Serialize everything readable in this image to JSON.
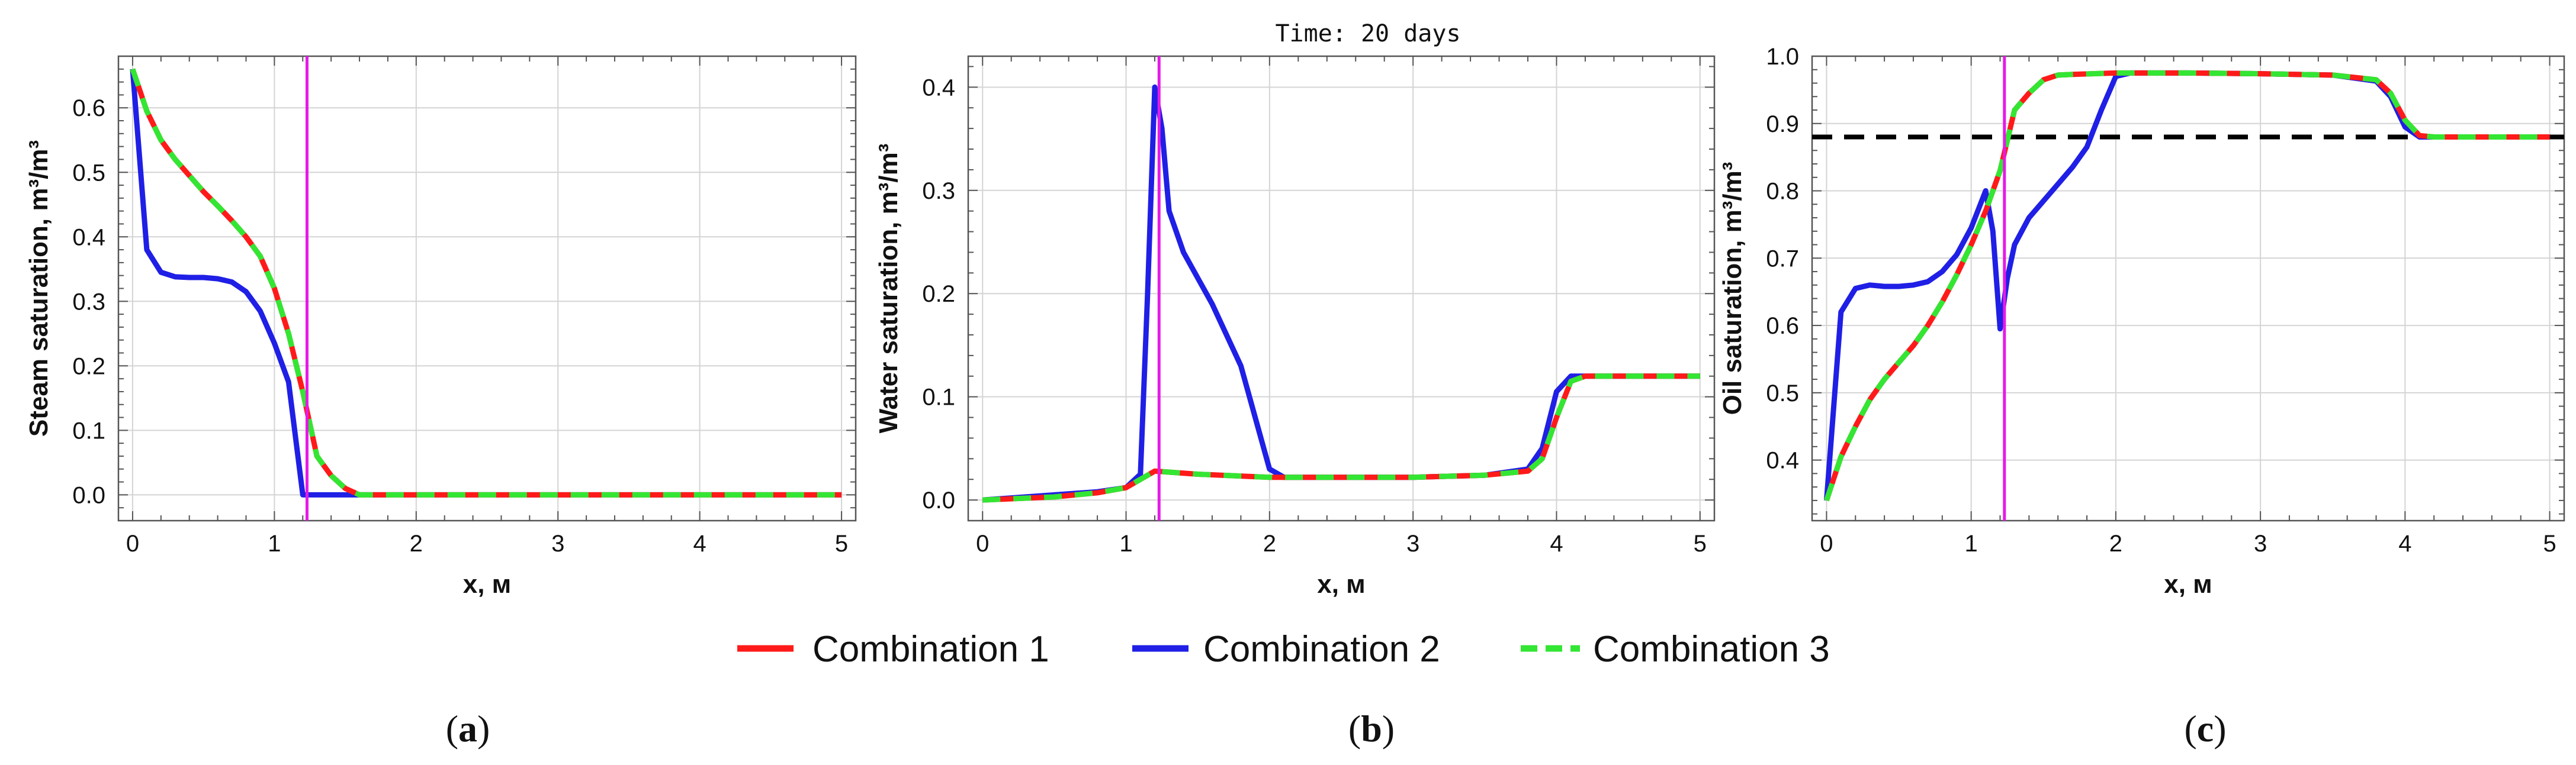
{
  "colors": {
    "combination_1": "#ff1a1a",
    "combination_2": "#1f1fe6",
    "combination_3": "#33e633",
    "marker_line": "#e619e6",
    "reference_line": "#000000"
  },
  "figure": {
    "title": "Time: 20 days",
    "legend": [
      "Combination 1",
      "Combination 2",
      "Combination 3"
    ],
    "subfigure_labels": [
      {
        "open": "(",
        "letter": "a",
        "close": ")"
      },
      {
        "open": "(",
        "letter": "b",
        "close": ")"
      },
      {
        "open": "(",
        "letter": "c",
        "close": ")"
      }
    ]
  },
  "chart_data": [
    {
      "type": "line",
      "title": "",
      "xlabel": "x, м",
      "ylabel": "Steam saturation, m³/m³",
      "xlim": [
        -0.1,
        5.1
      ],
      "ylim": [
        -0.04,
        0.68
      ],
      "xticks": [
        0,
        1,
        2,
        3,
        4,
        5
      ],
      "yticks": [
        0.0,
        0.1,
        0.2,
        0.3,
        0.4,
        0.5,
        0.6
      ],
      "ytick_labels": [
        "0.0",
        "0.1",
        "0.2",
        "0.3",
        "0.4",
        "0.5",
        "0.6"
      ],
      "vertical_line_x": 1.23,
      "series": [
        {
          "name": "Combination 1",
          "x": [
            0,
            0.1,
            0.2,
            0.3,
            0.4,
            0.5,
            0.6,
            0.7,
            0.8,
            0.9,
            1.0,
            1.1,
            1.2,
            1.3,
            1.4,
            1.5,
            1.6,
            1.7,
            2,
            3,
            4,
            5
          ],
          "y": [
            0.66,
            0.595,
            0.55,
            0.52,
            0.495,
            0.47,
            0.448,
            0.425,
            0.4,
            0.37,
            0.32,
            0.25,
            0.16,
            0.06,
            0.03,
            0.01,
            0.0,
            0.0,
            0.0,
            0.0,
            0.0,
            0.0
          ]
        },
        {
          "name": "Combination 2",
          "x": [
            0,
            0.1,
            0.2,
            0.3,
            0.4,
            0.5,
            0.6,
            0.7,
            0.8,
            0.9,
            1.0,
            1.1,
            1.2,
            1.25,
            2,
            3,
            4,
            5
          ],
          "y": [
            0.66,
            0.38,
            0.345,
            0.338,
            0.337,
            0.337,
            0.335,
            0.33,
            0.315,
            0.285,
            0.235,
            0.175,
            0.0,
            0.0,
            0.0,
            0.0,
            0.0,
            0.0
          ]
        },
        {
          "name": "Combination 3",
          "x": [
            0,
            0.1,
            0.2,
            0.3,
            0.4,
            0.5,
            0.6,
            0.7,
            0.8,
            0.9,
            1.0,
            1.1,
            1.2,
            1.3,
            1.4,
            1.5,
            1.6,
            1.7,
            2,
            3,
            4,
            5
          ],
          "y": [
            0.66,
            0.595,
            0.55,
            0.52,
            0.495,
            0.47,
            0.448,
            0.425,
            0.4,
            0.37,
            0.32,
            0.25,
            0.16,
            0.06,
            0.03,
            0.01,
            0.0,
            0.0,
            0.0,
            0.0,
            0.0,
            0.0
          ]
        }
      ]
    },
    {
      "type": "line",
      "title": "Time: 20 days",
      "xlabel": "x, м",
      "ylabel": "Water saturation, m³/m³",
      "xlim": [
        -0.1,
        5.1
      ],
      "ylim": [
        -0.02,
        0.43
      ],
      "xticks": [
        0,
        1,
        2,
        3,
        4,
        5
      ],
      "yticks": [
        0.0,
        0.1,
        0.2,
        0.3,
        0.4
      ],
      "ytick_labels": [
        "0.0",
        "0.1",
        "0.2",
        "0.3",
        "0.4"
      ],
      "vertical_line_x": 1.23,
      "series": [
        {
          "name": "Combination 1",
          "x": [
            0,
            0.5,
            0.8,
            1.0,
            1.1,
            1.2,
            1.3,
            1.5,
            2,
            2.5,
            3,
            3.5,
            3.8,
            3.9,
            4.0,
            4.1,
            4.2,
            5
          ],
          "y": [
            0.0,
            0.003,
            0.007,
            0.012,
            0.02,
            0.028,
            0.027,
            0.025,
            0.022,
            0.022,
            0.022,
            0.024,
            0.028,
            0.04,
            0.08,
            0.115,
            0.12,
            0.12
          ]
        },
        {
          "name": "Combination 2",
          "x": [
            0,
            0.5,
            0.8,
            1.0,
            1.1,
            1.15,
            1.2,
            1.25,
            1.3,
            1.4,
            1.6,
            1.8,
            1.9,
            2.0,
            2.1,
            2.5,
            3,
            3.5,
            3.8,
            3.9,
            4.0,
            4.1,
            4.2,
            5
          ],
          "y": [
            0.0,
            0.005,
            0.008,
            0.012,
            0.025,
            0.2,
            0.4,
            0.36,
            0.28,
            0.24,
            0.19,
            0.13,
            0.08,
            0.03,
            0.022,
            0.022,
            0.022,
            0.024,
            0.03,
            0.05,
            0.105,
            0.12,
            0.12,
            0.12
          ]
        },
        {
          "name": "Combination 3",
          "x": [
            0,
            0.5,
            0.8,
            1.0,
            1.1,
            1.2,
            1.3,
            1.5,
            2,
            2.5,
            3,
            3.5,
            3.8,
            3.9,
            4.0,
            4.1,
            4.2,
            5
          ],
          "y": [
            0.0,
            0.003,
            0.007,
            0.012,
            0.02,
            0.028,
            0.027,
            0.025,
            0.022,
            0.022,
            0.022,
            0.024,
            0.028,
            0.04,
            0.08,
            0.115,
            0.12,
            0.12
          ]
        }
      ]
    },
    {
      "type": "line",
      "title": "",
      "xlabel": "x, м",
      "ylabel": "Oil saturation, m³/m³",
      "xlim": [
        -0.1,
        5.1
      ],
      "ylim": [
        0.31,
        1.0
      ],
      "xticks": [
        0,
        1,
        2,
        3,
        4,
        5
      ],
      "yticks": [
        0.4,
        0.5,
        0.6,
        0.7,
        0.8,
        0.9,
        1.0
      ],
      "ytick_labels": [
        "0.4",
        "0.5",
        "0.6",
        "0.7",
        "0.8",
        "0.9",
        "1.0"
      ],
      "vertical_line_x": 1.23,
      "reference_line_y": 0.88,
      "series": [
        {
          "name": "Combination 1",
          "x": [
            0,
            0.1,
            0.2,
            0.3,
            0.4,
            0.5,
            0.6,
            0.7,
            0.8,
            0.9,
            1.0,
            1.1,
            1.2,
            1.3,
            1.4,
            1.5,
            1.6,
            1.7,
            2,
            2.5,
            3,
            3.5,
            3.8,
            3.9,
            4.0,
            4.1,
            4.2,
            5
          ],
          "y": [
            0.34,
            0.405,
            0.45,
            0.49,
            0.52,
            0.545,
            0.57,
            0.6,
            0.635,
            0.675,
            0.72,
            0.77,
            0.83,
            0.92,
            0.945,
            0.965,
            0.972,
            0.973,
            0.975,
            0.975,
            0.974,
            0.972,
            0.965,
            0.945,
            0.905,
            0.882,
            0.88,
            0.88
          ]
        },
        {
          "name": "Combination 2",
          "x": [
            0,
            0.1,
            0.2,
            0.3,
            0.4,
            0.5,
            0.6,
            0.7,
            0.8,
            0.9,
            1.0,
            1.1,
            1.15,
            1.2,
            1.25,
            1.3,
            1.4,
            1.5,
            1.6,
            1.7,
            1.8,
            1.9,
            2.0,
            2.1,
            2.5,
            3,
            3.5,
            3.8,
            3.9,
            4.0,
            4.1,
            4.2,
            5
          ],
          "y": [
            0.34,
            0.62,
            0.655,
            0.66,
            0.658,
            0.658,
            0.66,
            0.665,
            0.68,
            0.705,
            0.745,
            0.8,
            0.74,
            0.595,
            0.67,
            0.72,
            0.76,
            0.785,
            0.81,
            0.835,
            0.865,
            0.92,
            0.97,
            0.975,
            0.975,
            0.974,
            0.972,
            0.963,
            0.94,
            0.895,
            0.88,
            0.88,
            0.88
          ]
        },
        {
          "name": "Combination 3",
          "x": [
            0,
            0.1,
            0.2,
            0.3,
            0.4,
            0.5,
            0.6,
            0.7,
            0.8,
            0.9,
            1.0,
            1.1,
            1.2,
            1.3,
            1.4,
            1.5,
            1.6,
            1.7,
            2,
            2.5,
            3,
            3.5,
            3.8,
            3.9,
            4.0,
            4.1,
            4.2,
            5
          ],
          "y": [
            0.34,
            0.405,
            0.45,
            0.49,
            0.52,
            0.545,
            0.57,
            0.6,
            0.635,
            0.675,
            0.72,
            0.77,
            0.83,
            0.92,
            0.945,
            0.965,
            0.972,
            0.973,
            0.975,
            0.975,
            0.974,
            0.972,
            0.965,
            0.945,
            0.905,
            0.882,
            0.88,
            0.88
          ]
        }
      ]
    }
  ]
}
